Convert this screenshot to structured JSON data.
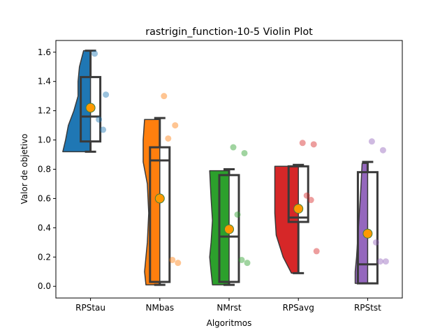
{
  "chart_data": {
    "type": "violin",
    "title": "rastrigin_function-10-5 Violin Plot",
    "xlabel": "Algoritmos",
    "ylabel": "Valor de objetivo",
    "ylim": [
      -0.08,
      1.68
    ],
    "yticks": [
      "0.0",
      "0.2",
      "0.4",
      "0.6",
      "0.8",
      "1.0",
      "1.2",
      "1.4",
      "1.6"
    ],
    "categories": [
      "RPStau",
      "NMbas",
      "NMrst",
      "RPSavg",
      "RPStst"
    ],
    "colors": [
      "#1f77b4",
      "#ff7f0e",
      "#2ca02c",
      "#d62728",
      "#9467bd"
    ],
    "mean_marker_color": "#ff9900",
    "series": [
      {
        "name": "RPStau",
        "box": {
          "min": 0.92,
          "q1": 0.99,
          "median": 1.16,
          "q3": 1.43,
          "max": 1.61
        },
        "mean": 1.22,
        "points": [
          1.59,
          1.31,
          1.14,
          1.07
        ],
        "violin": [
          [
            0.92,
            1.0
          ],
          [
            1.0,
            0.9
          ],
          [
            1.1,
            0.8
          ],
          [
            1.2,
            0.6
          ],
          [
            1.3,
            0.45
          ],
          [
            1.4,
            0.45
          ],
          [
            1.5,
            0.4
          ],
          [
            1.61,
            0.25
          ]
        ]
      },
      {
        "name": "NMbas",
        "box": {
          "min": 0.01,
          "q1": 0.03,
          "median": 0.86,
          "q3": 0.95,
          "max": 1.15
        },
        "mean": 0.6,
        "points": [
          1.3,
          1.1,
          1.01,
          0.18,
          0.16
        ],
        "violin": [
          [
            0.01,
            0.5
          ],
          [
            0.1,
            0.55
          ],
          [
            0.3,
            0.45
          ],
          [
            0.5,
            0.4
          ],
          [
            0.7,
            0.45
          ],
          [
            0.85,
            0.6
          ],
          [
            1.0,
            0.6
          ],
          [
            1.14,
            0.55
          ]
        ]
      },
      {
        "name": "NMrst",
        "box": {
          "min": 0.01,
          "q1": 0.03,
          "median": 0.34,
          "q3": 0.76,
          "max": 0.8
        },
        "mean": 0.39,
        "points": [
          0.95,
          0.91,
          0.49,
          0.18,
          0.16
        ],
        "violin": [
          [
            0.01,
            0.6
          ],
          [
            0.1,
            0.65
          ],
          [
            0.2,
            0.7
          ],
          [
            0.3,
            0.65
          ],
          [
            0.45,
            0.6
          ],
          [
            0.6,
            0.65
          ],
          [
            0.79,
            0.7
          ]
        ]
      },
      {
        "name": "RPSavg",
        "box": {
          "min": 0.09,
          "q1": 0.44,
          "median": 0.47,
          "q3": 0.82,
          "max": 0.83
        },
        "mean": 0.53,
        "points": [
          0.98,
          0.97,
          0.62,
          0.59,
          0.24
        ],
        "violin": [
          [
            0.09,
            0.25
          ],
          [
            0.2,
            0.55
          ],
          [
            0.35,
            0.8
          ],
          [
            0.5,
            0.85
          ],
          [
            0.65,
            0.85
          ],
          [
            0.82,
            0.85
          ]
        ]
      },
      {
        "name": "RPStst",
        "box": {
          "min": 0.02,
          "q1": 0.02,
          "median": 0.15,
          "q3": 0.78,
          "max": 0.85
        },
        "mean": 0.36,
        "points": [
          0.99,
          0.93,
          0.3,
          0.17,
          0.17
        ],
        "violin": [
          [
            0.02,
            0.45
          ],
          [
            0.1,
            0.45
          ],
          [
            0.2,
            0.4
          ],
          [
            0.35,
            0.35
          ],
          [
            0.5,
            0.3
          ],
          [
            0.65,
            0.25
          ],
          [
            0.84,
            0.2
          ]
        ]
      }
    ]
  }
}
